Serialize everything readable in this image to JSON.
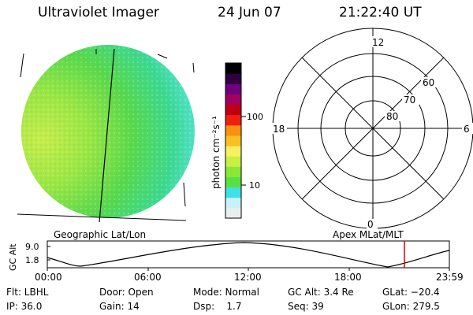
{
  "header": {
    "instrument": "Ultraviolet Imager",
    "date": "24 Jun 07",
    "time": "21:22:40 UT"
  },
  "colorbar": {
    "unit_label": "photon cm⁻²s⁻¹",
    "ticks": [
      "100",
      "10"
    ],
    "colors": [
      "#e8eef0",
      "#c8f2f8",
      "#40e0e8",
      "#58e040",
      "#88e838",
      "#c8f040",
      "#f8f060",
      "#f8c020",
      "#f89010",
      "#f02010",
      "#c00010",
      "#a00060",
      "#700080",
      "#300040",
      "#000000"
    ]
  },
  "polar_plot": {
    "mlt_labels": [
      "12",
      "18",
      "6",
      "0"
    ],
    "lat_labels": [
      "60",
      "70",
      "80"
    ]
  },
  "left_panel_caption": "Geographic Lat/Lon",
  "right_panel_caption": "Apex MLat/MLT",
  "altitude_plot": {
    "ylabel": "GC Alt",
    "ytick_max": "9.0",
    "ytick_min": "1.8",
    "time_ticks": [
      "00:00",
      "06:00",
      "12:00",
      "18:00",
      "23:59"
    ],
    "marker_color": "#e00000"
  },
  "status": {
    "flt": "Flt: LBHL",
    "door": "Door: Open",
    "mode": "Mode: Normal",
    "gc_alt": "GC Alt: 3.4 Re",
    "glat": "GLat: −20.4",
    "ip": "IP: 36.0",
    "gain": "Gain: 14",
    "dsp": "Dsp:    1.7",
    "seq": "Seq: 39",
    "glon": "GLon: 279.5"
  }
}
